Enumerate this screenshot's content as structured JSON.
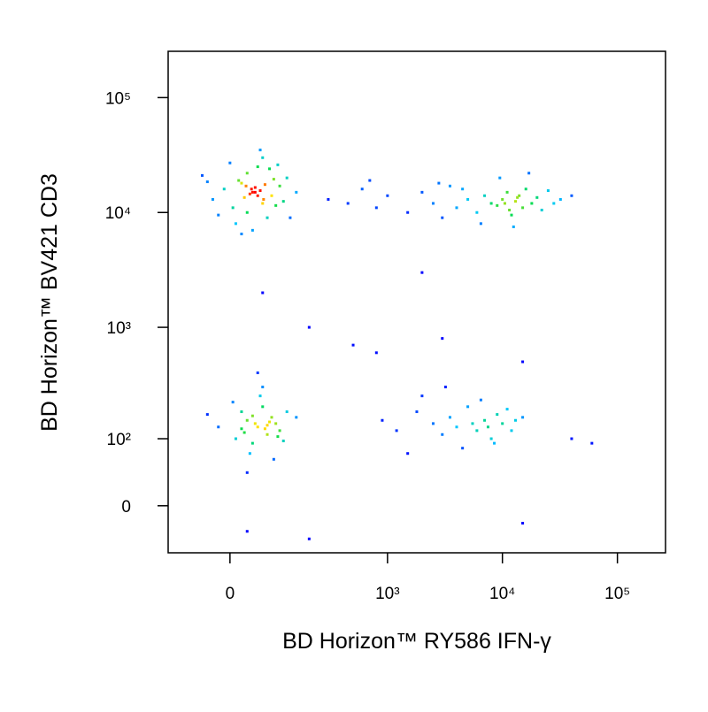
{
  "chart_data": {
    "type": "scatter",
    "x_label": "BD Horizon™ RY586  IFN-γ",
    "y_label": "BD Horizon™ BV421 CD3",
    "xscale": "biexponential",
    "yscale": "biexponential",
    "xlim": [
      -135,
      262000
    ],
    "ylim": [
      -61,
      253000
    ],
    "xticks": [
      0,
      {
        "value": 1000,
        "label": "10³"
      },
      {
        "value": 10000,
        "label": "10⁴"
      },
      {
        "value": 100000,
        "label": "10⁵"
      }
    ],
    "yticks": [
      0,
      {
        "value": 100,
        "label": "10²"
      },
      {
        "value": 1000,
        "label": "10³"
      },
      {
        "value": 10000,
        "label": "10⁴"
      },
      {
        "value": 100000,
        "label": "10⁵"
      }
    ],
    "color_by_density": true,
    "x": [
      40,
      20,
      60,
      -10,
      80,
      30,
      100,
      5,
      50,
      70,
      -30,
      120,
      45,
      35,
      55,
      25,
      65,
      15,
      90,
      -50,
      150,
      10,
      60,
      40,
      75,
      30,
      85,
      -20,
      110,
      0,
      45,
      50,
      38,
      62,
      28,
      130,
      -40,
      95,
      20,
      55,
      300,
      450,
      600,
      800,
      1000,
      1500,
      2000,
      2500,
      3000,
      3500,
      4000,
      5000,
      6000,
      7000,
      8000,
      9000,
      10000,
      11000,
      12000,
      13000,
      14000,
      15000,
      16000,
      18000,
      20000,
      22000,
      25000,
      28000,
      32000,
      6500,
      9500,
      12500,
      17000,
      4500,
      11500,
      13500,
      10500,
      2800,
      700,
      40000,
      50,
      30,
      70,
      20,
      90,
      10,
      60,
      40,
      80,
      100,
      -20,
      55,
      35,
      120,
      45,
      65,
      25,
      75,
      5,
      110,
      150,
      -40,
      85,
      60,
      30,
      50,
      40,
      70,
      20,
      95,
      900,
      1200,
      1800,
      2500,
      3000,
      3500,
      4000,
      5000,
      6000,
      7000,
      8000,
      9000,
      10000,
      12000,
      15000,
      2000,
      4500,
      6500,
      11000,
      5500,
      7500,
      13000,
      3200,
      8500,
      1500,
      800,
      3000,
      200,
      60,
      2000,
      15000,
      40000,
      60000,
      30,
      200,
      15000,
      500
    ],
    "values": [
      15000,
      18000,
      12000,
      16000,
      14000,
      22000,
      17000,
      11000,
      25000,
      9000,
      13000,
      20000,
      16500,
      14500,
      15500,
      13500,
      17500,
      19000,
      11500,
      21000,
      15000,
      8000,
      30000,
      7000,
      24000,
      10000,
      19500,
      9500,
      12500,
      27000,
      15000,
      14000,
      16000,
      13000,
      17000,
      9000,
      18500,
      26000,
      6500,
      35000,
      13000,
      12000,
      16000,
      11000,
      14000,
      10000,
      15000,
      12000,
      9000,
      17000,
      11000,
      13000,
      10000,
      14000,
      12000,
      11500,
      13000,
      15000,
      9500,
      12500,
      14000,
      11000,
      16000,
      12000,
      13500,
      10500,
      15500,
      12000,
      13000,
      8000,
      20000,
      7500,
      22000,
      16000,
      10500,
      13500,
      12000,
      18000,
      19000,
      14000,
      130,
      150,
      110,
      180,
      140,
      100,
      200,
      90,
      160,
      120,
      130,
      250,
      70,
      180,
      140,
      125,
      115,
      145,
      220,
      95,
      160,
      170,
      60,
      300,
      40,
      400,
      165,
      135,
      125,
      105,
      150,
      120,
      180,
      140,
      110,
      160,
      130,
      200,
      120,
      150,
      100,
      170,
      140,
      120,
      160,
      250,
      80,
      230,
      190,
      140,
      130,
      150,
      300,
      90,
      70,
      600,
      800,
      1000,
      2000,
      3000,
      500,
      100,
      90,
      -30,
      -40,
      -20,
      700
    ]
  }
}
